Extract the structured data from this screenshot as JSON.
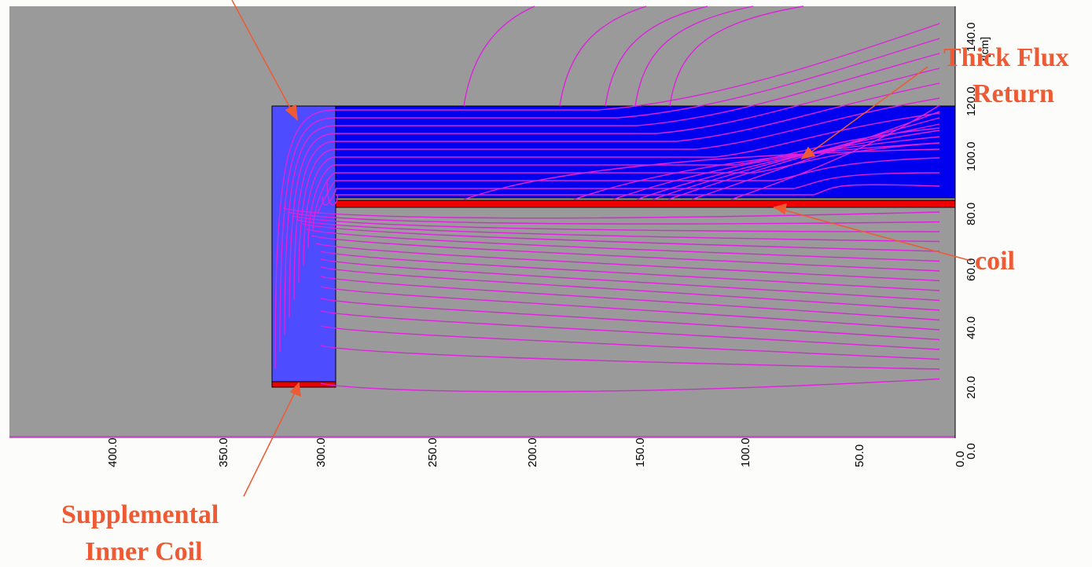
{
  "colors": {
    "background_region": "#9a9a9a",
    "iron": "#0000ee",
    "inner_iron": "#4d4dff",
    "coil": "#ee0000",
    "field_lines": "#dd22dd",
    "annotation": "#ee5a33"
  },
  "axes": {
    "x_ticks": [
      "400.0",
      "350.0",
      "300.0",
      "250.0",
      "200.0",
      "150.0",
      "100.0",
      "50.0",
      "0.0"
    ],
    "y_ticks": [
      "0.0",
      "20.0",
      "40.0",
      "60.0",
      "80.0",
      "100.0",
      "120.0",
      "140.0"
    ],
    "y_unit": "r[cm]"
  },
  "annotations": {
    "flux_return": [
      "Thick Flux",
      "Return"
    ],
    "coil": "coil",
    "inner_coil": [
      "Supplemental",
      "Inner Coil"
    ]
  }
}
